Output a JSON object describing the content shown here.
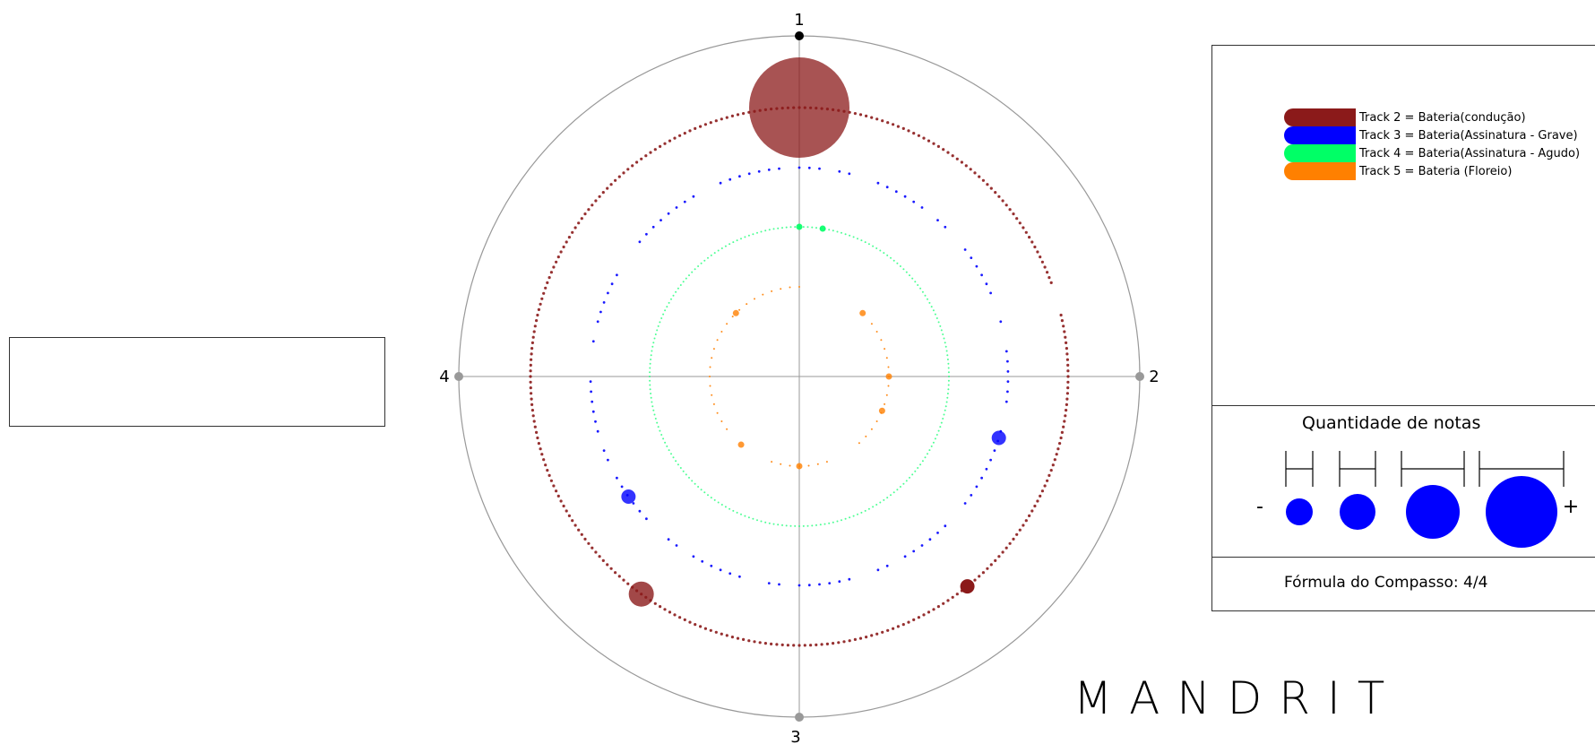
{
  "chart_data": {
    "type": "scatter",
    "polar": true,
    "axis_labels": [
      "1",
      "2",
      "3",
      "4"
    ],
    "series": [
      {
        "name": "Track 2 = Bateria(condução)",
        "color": "#8b1a1a",
        "ring_dots": "dense",
        "highlights": [
          {
            "beat_position": 1.0,
            "size": 4,
            "opacity": 0.75
          },
          {
            "beat_position": 2.57,
            "size": 1,
            "opacity": 1.0
          },
          {
            "beat_position": 3.4,
            "size": 2,
            "opacity": 0.8
          }
        ]
      },
      {
        "name": "Track 3 = Bateria(Assinatura - Grave)",
        "color": "#0000ff",
        "ring_dots": "sparse",
        "highlights": [
          {
            "beat_position": 2.19,
            "size": 1,
            "opacity": 0.8
          },
          {
            "beat_position": 3.61,
            "size": 1,
            "opacity": 0.8
          }
        ]
      },
      {
        "name": "Track 4 = Bateria(Assinatura - Agudo)",
        "color": "#00ff66",
        "ring_dots": "dense-faint",
        "highlights": [
          {
            "beat_position": 1.0,
            "size": 0,
            "opacity": 0.9
          },
          {
            "beat_position": 1.1,
            "size": 0,
            "opacity": 0.9
          }
        ]
      },
      {
        "name": "Track 5 = Bateria (Floreio)",
        "color": "#ff8000",
        "ring_dots": "clustered",
        "highlights": [
          {
            "beat_position": 1.5,
            "size": 0,
            "opacity": 0.8
          },
          {
            "beat_position": 2.0,
            "size": 0,
            "opacity": 0.8
          },
          {
            "beat_position": 2.25,
            "size": 0,
            "opacity": 0.8
          },
          {
            "beat_position": 3.0,
            "size": 0,
            "opacity": 0.8
          },
          {
            "beat_position": 3.45,
            "size": 0,
            "opacity": 0.8
          },
          {
            "beat_position": 4.5,
            "size": 0,
            "opacity": 0.8
          }
        ]
      }
    ]
  },
  "legend": {
    "items": [
      {
        "label": "Track 2 = Bateria(condução)",
        "color": "#8b1a1a"
      },
      {
        "label": "Track 3 = Bateria(Assinatura - Grave)",
        "color": "#0000ff"
      },
      {
        "label": "Track 4 = Bateria(Assinatura - Agudo)",
        "color": "#00ff66"
      },
      {
        "label": "Track 5 = Bateria (Floreio)",
        "color": "#ff8000"
      }
    ]
  },
  "size_legend": {
    "title": "Quantidade de notas",
    "minus": "-",
    "plus": "+",
    "color": "#0000ff",
    "levels": [
      1,
      2,
      3,
      4
    ]
  },
  "meter": {
    "text": "Fórmula do Compasso: 4/4"
  },
  "brand": "MANDRIT"
}
